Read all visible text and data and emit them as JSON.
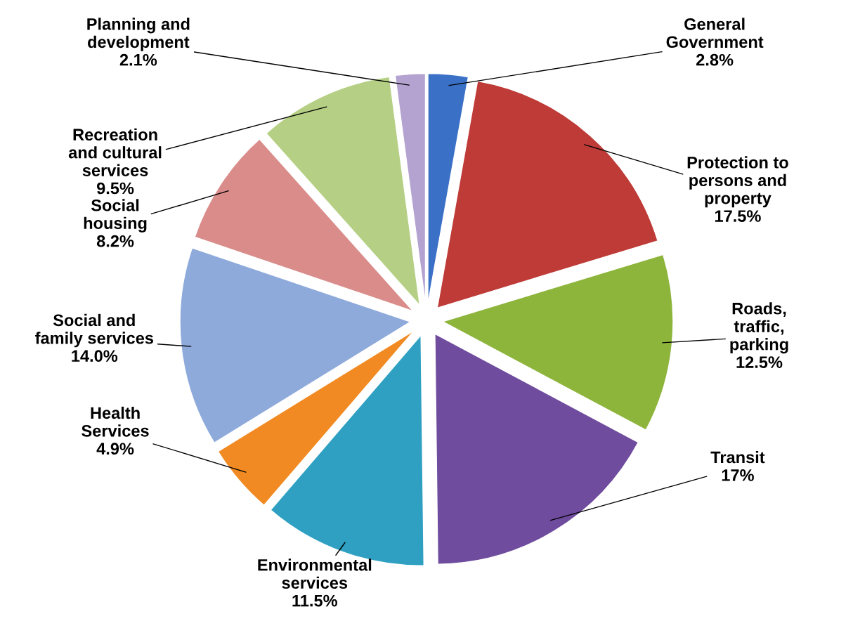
{
  "chart_data": {
    "type": "pie",
    "categories": [
      "General\nGovernment",
      "Protection to\npersons and\nproperty",
      "Roads,\ntraffic,\nparking",
      "Transit",
      "Environmental\nservices",
      "Health\nServices",
      "Social and\nfamily services",
      "Social\nhousing",
      "Recreation\nand cultural\nservices",
      "Planning and\ndevelopment"
    ],
    "values": [
      2.8,
      17.5,
      12.5,
      17,
      11.5,
      4.9,
      14.0,
      8.2,
      9.5,
      2.1
    ],
    "value_labels": [
      "2.8%",
      "17.5%",
      "12.5%",
      "17%",
      "11.5%",
      "4.9%",
      "14.0%",
      "8.2%",
      "9.5%",
      "2.1%"
    ],
    "colors": [
      "#3a70c6",
      "#be3b37",
      "#8db43b",
      "#6f4c9e",
      "#2fa0c2",
      "#f18a22",
      "#8eaadb",
      "#d98c8a",
      "#b5d085",
      "#b4a3d0"
    ],
    "legend": false
  }
}
